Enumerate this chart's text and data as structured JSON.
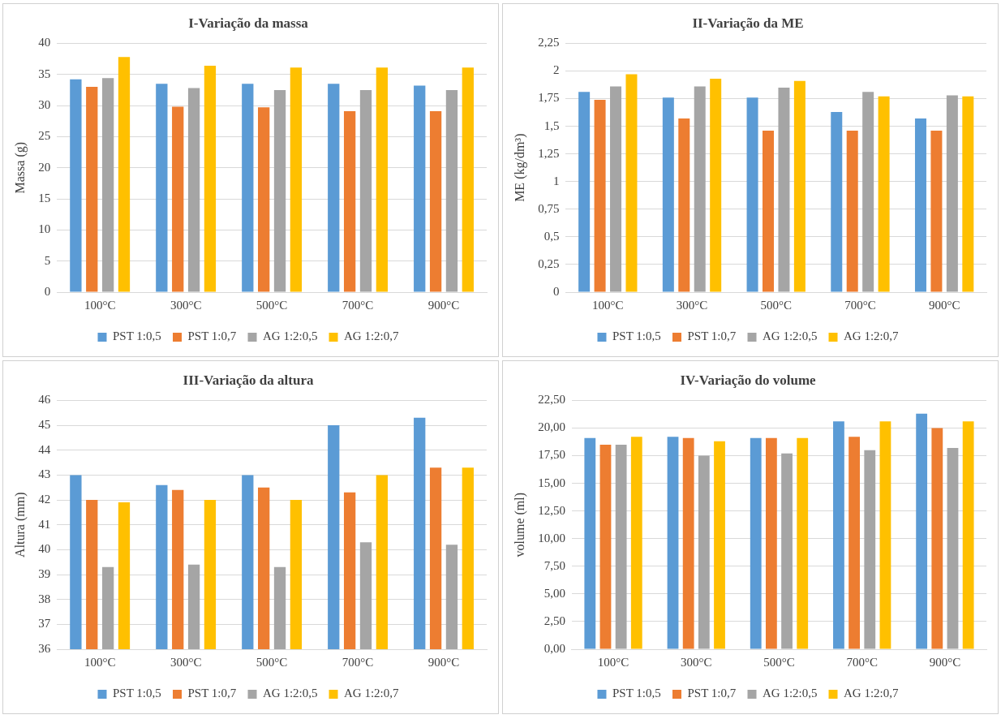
{
  "chart_data": [
    {
      "type": "bar",
      "title": "I-Variação da massa",
      "ylabel": "Massa (g)",
      "categories": [
        "100°C",
        "300°C",
        "500°C",
        "700°C",
        "900°C"
      ],
      "series": [
        {
          "name": "PST 1:0,5",
          "color": "#5b9bd5",
          "values": [
            34.2,
            33.5,
            33.5,
            33.5,
            33.2
          ]
        },
        {
          "name": "PST 1:0,7",
          "color": "#ed7d31",
          "values": [
            33.0,
            29.8,
            29.7,
            29.1,
            29.1
          ]
        },
        {
          "name": "AG 1:2:0,5",
          "color": "#a5a5a5",
          "values": [
            34.4,
            32.8,
            32.5,
            32.5,
            32.5
          ]
        },
        {
          "name": "AG 1:2:0,7",
          "color": "#ffc000",
          "values": [
            37.8,
            36.4,
            36.1,
            36.1,
            36.1
          ]
        }
      ],
      "ylim": [
        0,
        40
      ],
      "yticks": [
        0,
        5,
        10,
        15,
        20,
        25,
        30,
        35,
        40
      ],
      "grid": "y",
      "legend": "bottom"
    },
    {
      "type": "bar",
      "title": "II-Variação da ME",
      "ylabel": "ME (kg/dm³)",
      "categories": [
        "100°C",
        "300°C",
        "500°C",
        "700°C",
        "900°C"
      ],
      "series": [
        {
          "name": "PST 1:0,5",
          "color": "#5b9bd5",
          "values": [
            1.81,
            1.76,
            1.76,
            1.63,
            1.57
          ]
        },
        {
          "name": "PST 1:0,7",
          "color": "#ed7d31",
          "values": [
            1.74,
            1.57,
            1.46,
            1.46,
            1.46
          ]
        },
        {
          "name": "AG 1:2:0,5",
          "color": "#a5a5a5",
          "values": [
            1.86,
            1.86,
            1.85,
            1.81,
            1.78
          ]
        },
        {
          "name": "AG 1:2:0,7",
          "color": "#ffc000",
          "values": [
            1.97,
            1.93,
            1.91,
            1.77,
            1.77
          ]
        }
      ],
      "ylim": [
        0,
        2.25
      ],
      "yticks": [
        0,
        {
          "value": 0.25,
          "label": "0,25"
        },
        {
          "value": 0.5,
          "label": "0,5"
        },
        {
          "value": 0.75,
          "label": "0,75"
        },
        1,
        {
          "value": 1.25,
          "label": "1,25"
        },
        {
          "value": 1.5,
          "label": "1,5"
        },
        {
          "value": 1.75,
          "label": "1,75"
        },
        2,
        {
          "value": 2.25,
          "label": "2,25"
        }
      ],
      "grid": "y",
      "legend": "bottom"
    },
    {
      "type": "bar",
      "title": "III-Variação da altura",
      "ylabel": "Altura (mm)",
      "categories": [
        "100°C",
        "300°C",
        "500°C",
        "700°C",
        "900°C"
      ],
      "series": [
        {
          "name": "PST 1:0,5",
          "color": "#5b9bd5",
          "values": [
            43.0,
            42.6,
            43.0,
            45.0,
            45.3
          ]
        },
        {
          "name": "PST 1:0,7",
          "color": "#ed7d31",
          "values": [
            42.0,
            42.4,
            42.5,
            42.3,
            43.3
          ]
        },
        {
          "name": "AG 1:2:0,5",
          "color": "#a5a5a5",
          "values": [
            39.3,
            39.4,
            39.3,
            40.3,
            40.2
          ]
        },
        {
          "name": "AG 1:2:0,7",
          "color": "#ffc000",
          "values": [
            41.9,
            42.0,
            42.0,
            43.0,
            43.3
          ]
        }
      ],
      "ylim": [
        36,
        46
      ],
      "yticks": [
        36,
        37,
        38,
        39,
        40,
        41,
        42,
        43,
        44,
        45,
        46
      ],
      "grid": "y",
      "legend": "bottom"
    },
    {
      "type": "bar",
      "title": "IV-Variação do volume",
      "ylabel": "volume (ml)",
      "categories": [
        "100°C",
        "300°C",
        "500°C",
        "700°C",
        "900°C"
      ],
      "series": [
        {
          "name": "PST 1:0,5",
          "color": "#5b9bd5",
          "values": [
            19.1,
            19.2,
            19.1,
            20.6,
            21.3
          ]
        },
        {
          "name": "PST 1:0,7",
          "color": "#ed7d31",
          "values": [
            18.5,
            19.1,
            19.1,
            19.2,
            20.0
          ]
        },
        {
          "name": "AG 1:2:0,5",
          "color": "#a5a5a5",
          "values": [
            18.5,
            17.5,
            17.7,
            18.0,
            18.2
          ]
        },
        {
          "name": "AG 1:2:0,7",
          "color": "#ffc000",
          "values": [
            19.2,
            18.8,
            19.1,
            20.6,
            20.6
          ]
        }
      ],
      "ylim": [
        0,
        22.5
      ],
      "yticks": [
        {
          "value": 0,
          "label": "0,00"
        },
        {
          "value": 2.5,
          "label": "2,50"
        },
        {
          "value": 5,
          "label": "5,00"
        },
        {
          "value": 7.5,
          "label": "7,50"
        },
        {
          "value": 10,
          "label": "10,00"
        },
        {
          "value": 12.5,
          "label": "12,50"
        },
        {
          "value": 15,
          "label": "15,00"
        },
        {
          "value": 17.5,
          "label": "17,50"
        },
        {
          "value": 20,
          "label": "20,00"
        },
        {
          "value": 22.5,
          "label": "22,50"
        }
      ],
      "grid": "y",
      "legend": "bottom"
    }
  ]
}
